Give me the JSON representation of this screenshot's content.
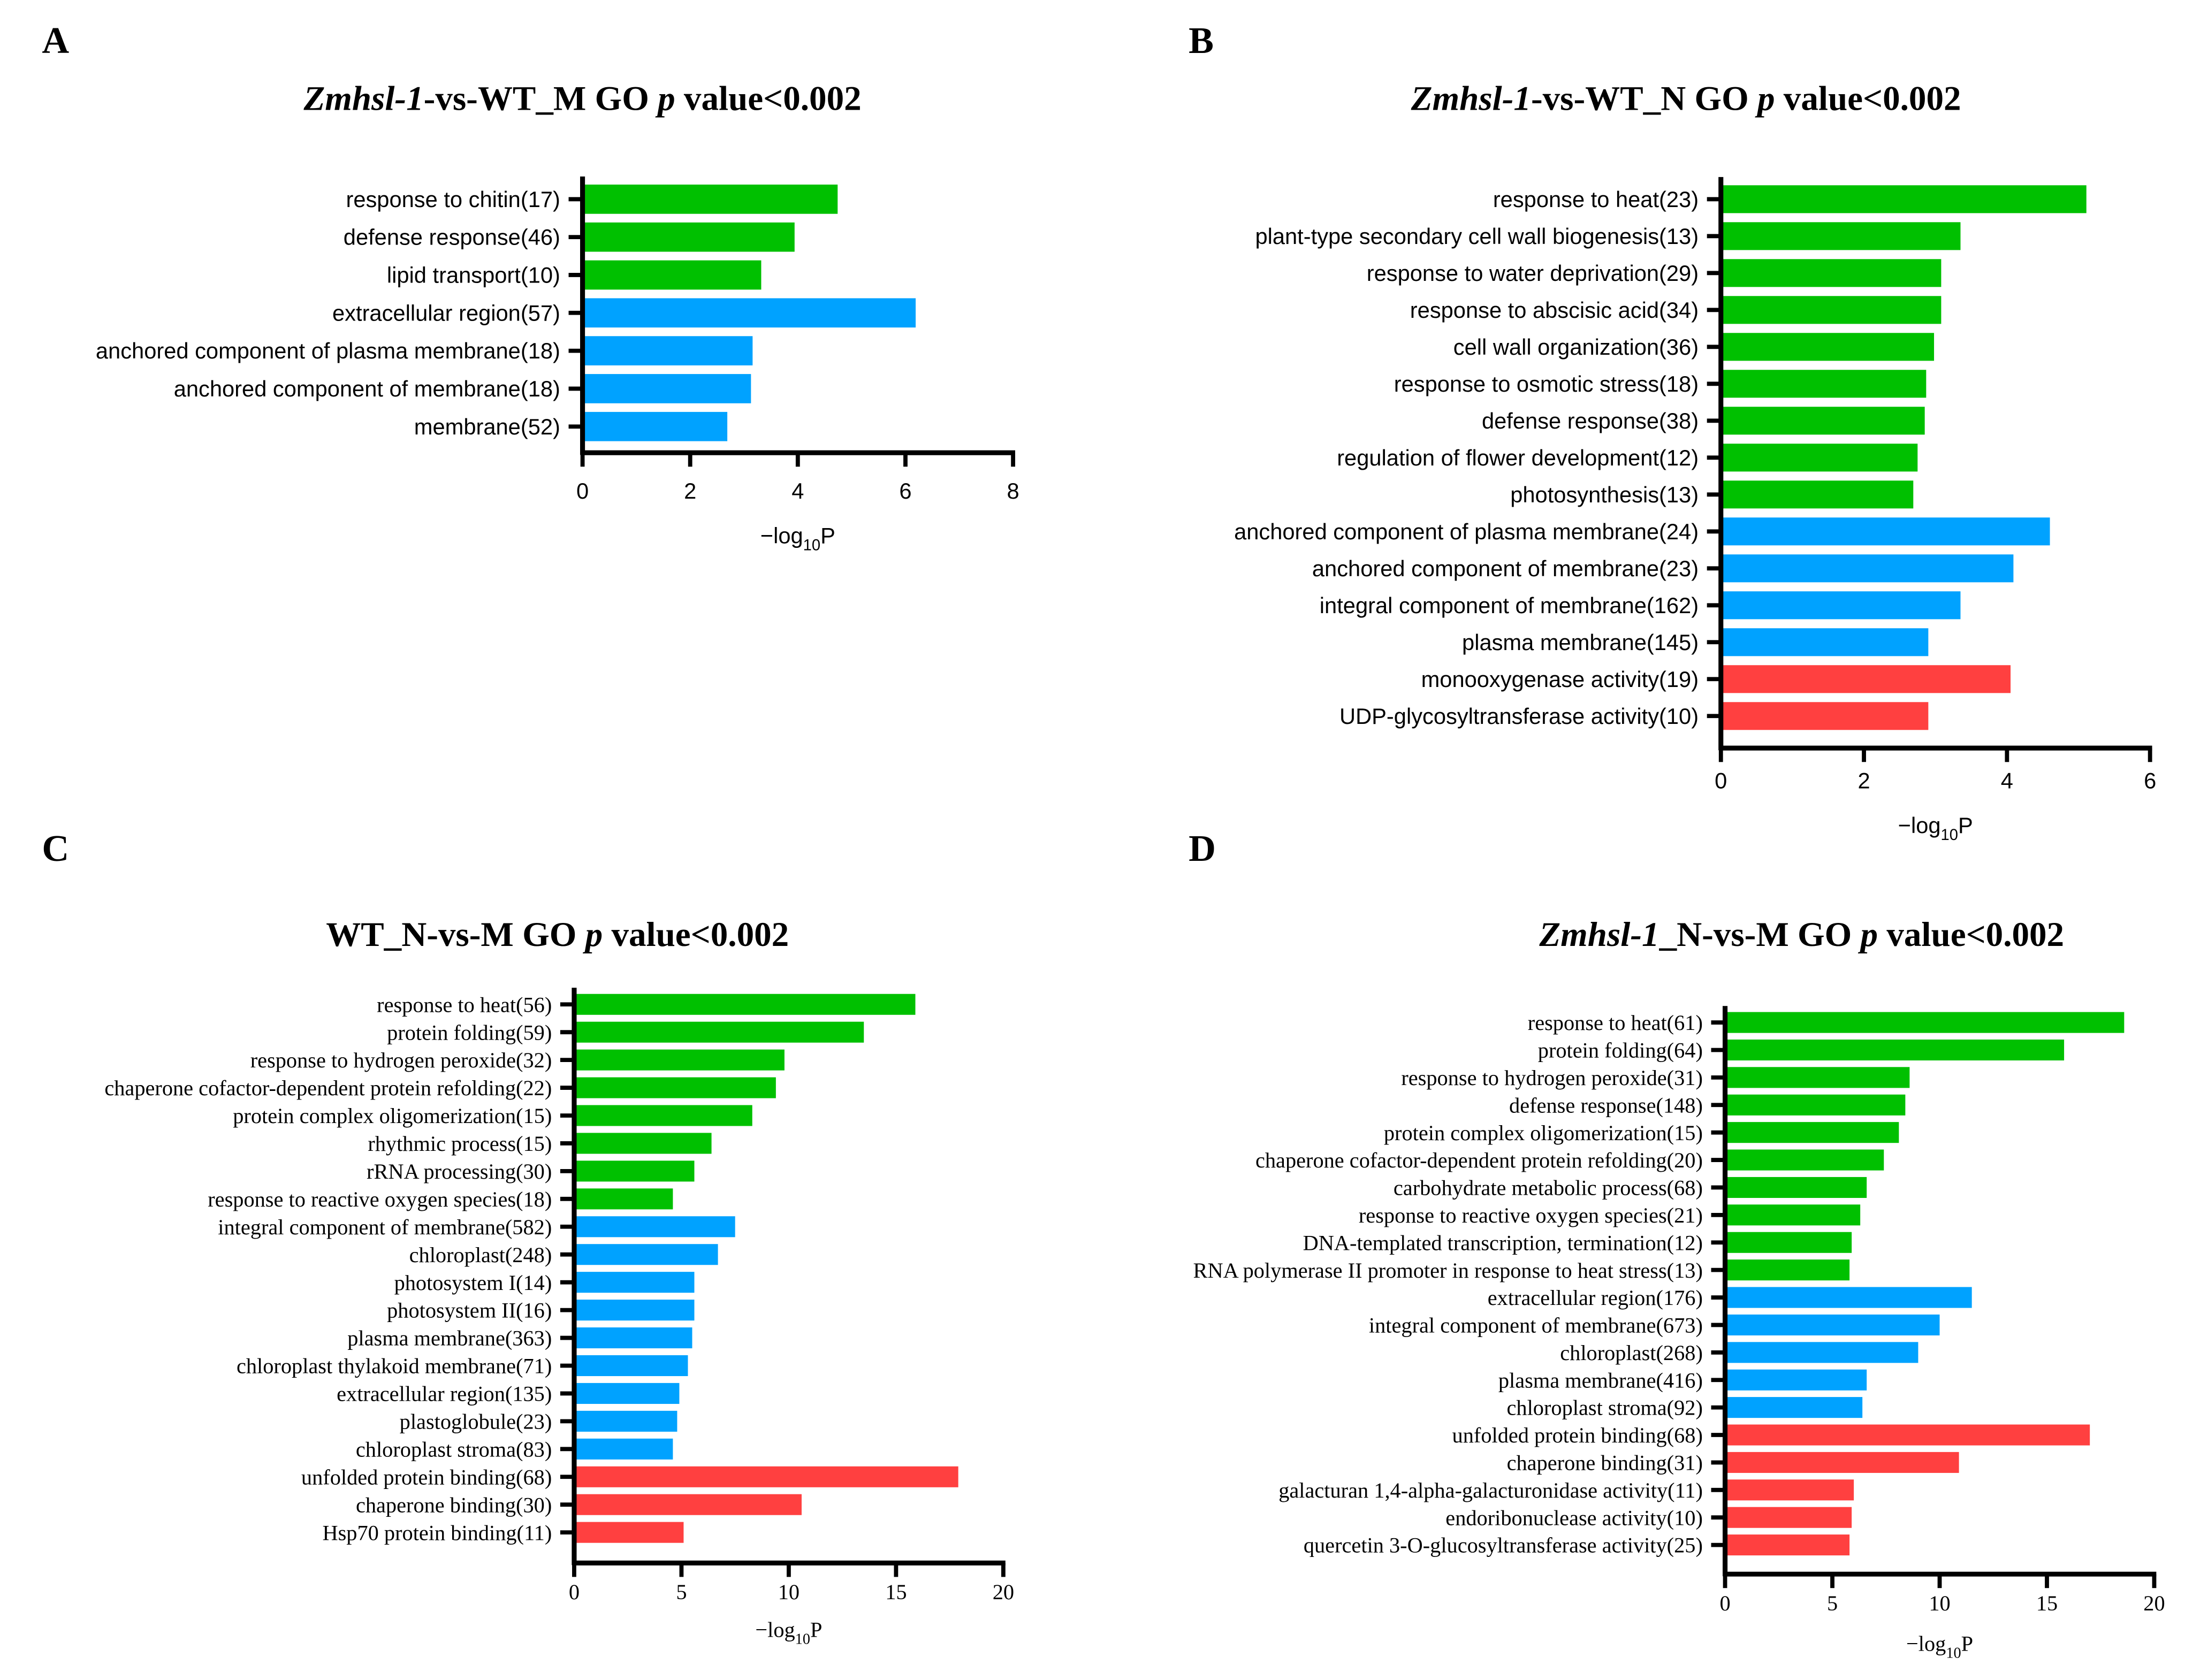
{
  "colors": {
    "bp": "#00c000",
    "cc": "#00a2ff",
    "mf": "#ff4040"
  },
  "chart_data": [
    {
      "type": "bar",
      "orientation": "horizontal",
      "panel_label": "A",
      "title": [
        {
          "text": "Zmhsl-1",
          "italic": true
        },
        {
          "text": "-vs-WT_M GO ",
          "italic": false
        },
        {
          "text": "p",
          "italic": true
        },
        {
          "text": " value<0.002",
          "italic": false
        }
      ],
      "xlabel": {
        "main": "−log",
        "sub": "10",
        "tail": "P"
      },
      "xlim": [
        0,
        8
      ],
      "xticks": [
        "0",
        "2",
        "4",
        "6",
        "8"
      ],
      "categories": [
        "response to chitin(17)",
        "defense response(46)",
        "lipid transport(10)",
        "extracellular region(57)",
        "anchored component of plasma membrane(18)",
        "anchored component of membrane(18)",
        "membrane(52)"
      ],
      "values": [
        4.74,
        3.94,
        3.32,
        6.19,
        3.16,
        3.13,
        2.69
      ],
      "groups": [
        "bp",
        "bp",
        "bp",
        "cc",
        "cc",
        "cc",
        "cc"
      ]
    },
    {
      "type": "bar",
      "orientation": "horizontal",
      "panel_label": "B",
      "title": [
        {
          "text": "Zmhsl-1",
          "italic": true
        },
        {
          "text": "-vs-WT_N GO ",
          "italic": false
        },
        {
          "text": "p",
          "italic": true
        },
        {
          "text": " value<0.002",
          "italic": false
        }
      ],
      "xlabel": {
        "main": "−log",
        "sub": "10",
        "tail": "P"
      },
      "xlim": [
        0,
        6
      ],
      "xticks": [
        "0",
        "2",
        "4",
        "6"
      ],
      "categories": [
        "response to heat(23)",
        "plant-type secondary cell wall biogenesis(13)",
        "response to water deprivation(29)",
        "response to abscisic acid(34)",
        "cell wall organization(36)",
        "response to osmotic stress(18)",
        "defense response(38)",
        "regulation of flower development(12)",
        "photosynthesis(13)",
        "anchored component of plasma membrane(24)",
        "anchored component of membrane(23)",
        "integral component of membrane(162)",
        "plasma membrane(145)",
        "monooxygenase activity(19)",
        "UDP-glycosyltransferase activity(10)"
      ],
      "values": [
        5.11,
        3.35,
        3.08,
        3.08,
        2.98,
        2.87,
        2.85,
        2.75,
        2.69,
        4.6,
        4.09,
        3.35,
        2.9,
        4.05,
        2.9
      ],
      "groups": [
        "bp",
        "bp",
        "bp",
        "bp",
        "bp",
        "bp",
        "bp",
        "bp",
        "bp",
        "cc",
        "cc",
        "cc",
        "cc",
        "mf",
        "mf"
      ]
    },
    {
      "type": "bar",
      "orientation": "horizontal",
      "panel_label": "C",
      "title": [
        {
          "text": "WT_N-vs-M GO ",
          "italic": false
        },
        {
          "text": "p",
          "italic": true
        },
        {
          "text": " value<0.002",
          "italic": false
        }
      ],
      "xlabel": {
        "main": "−log",
        "sub": "10",
        "tail": "P"
      },
      "xlim": [
        0,
        20
      ],
      "xticks": [
        "0",
        "5",
        "10",
        "15",
        "20"
      ],
      "categories": [
        "response to heat(56)",
        "protein folding(59)",
        "response to hydrogen peroxide(32)",
        "chaperone cofactor-dependent protein refolding(22)",
        "protein complex oligomerization(15)",
        "rhythmic process(15)",
        "rRNA processing(30)",
        "response to reactive oxygen species(18)",
        "integral component of membrane(582)",
        "chloroplast(248)",
        "photosystem I(14)",
        "photosystem II(16)",
        "plasma membrane(363)",
        "chloroplast thylakoid membrane(71)",
        "extracellular region(135)",
        "plastoglobule(23)",
        "chloroplast stroma(83)",
        "unfolded protein binding(68)",
        "chaperone binding(30)",
        "Hsp70 protein binding(11)"
      ],
      "values": [
        15.9,
        13.5,
        9.8,
        9.4,
        8.3,
        6.4,
        5.6,
        4.6,
        7.5,
        6.7,
        5.6,
        5.6,
        5.5,
        5.3,
        4.9,
        4.8,
        4.6,
        17.9,
        10.6,
        5.1
      ],
      "groups": [
        "bp",
        "bp",
        "bp",
        "bp",
        "bp",
        "bp",
        "bp",
        "bp",
        "cc",
        "cc",
        "cc",
        "cc",
        "cc",
        "cc",
        "cc",
        "cc",
        "cc",
        "mf",
        "mf",
        "mf"
      ]
    },
    {
      "type": "bar",
      "orientation": "horizontal",
      "panel_label": "D",
      "title": [
        {
          "text": "Zmhsl-1",
          "italic": true
        },
        {
          "text": "_N-vs-M GO ",
          "italic": false
        },
        {
          "text": "p",
          "italic": true
        },
        {
          "text": " value<0.002",
          "italic": false
        }
      ],
      "xlabel": {
        "main": "−log",
        "sub": "10",
        "tail": "P"
      },
      "xlim": [
        0,
        20
      ],
      "xticks": [
        "0",
        "5",
        "10",
        "15",
        "20"
      ],
      "categories": [
        "response to heat(61)",
        "protein folding(64)",
        "response to hydrogen peroxide(31)",
        "defense response(148)",
        "protein complex oligomerization(15)",
        "chaperone cofactor-dependent protein refolding(20)",
        "carbohydrate metabolic process(68)",
        "response to reactive oxygen species(21)",
        "DNA-templated transcription, termination(12)",
        "RNA polymerase II promoter in response to heat stress(13)",
        "extracellular region(176)",
        "integral component of membrane(673)",
        "chloroplast(268)",
        "plasma membrane(416)",
        "chloroplast stroma(92)",
        "unfolded protein binding(68)",
        "chaperone binding(31)",
        "galacturan 1,4-alpha-galacturonidase activity(11)",
        "endoribonuclease activity(10)",
        "quercetin 3-O-glucosyltransferase activity(25)"
      ],
      "values": [
        18.6,
        15.8,
        8.6,
        8.4,
        8.1,
        7.4,
        6.6,
        6.3,
        5.9,
        5.8,
        11.5,
        10.0,
        9.0,
        6.6,
        6.4,
        17.0,
        10.9,
        6.0,
        5.9,
        5.8
      ],
      "groups": [
        "bp",
        "bp",
        "bp",
        "bp",
        "bp",
        "bp",
        "bp",
        "bp",
        "bp",
        "bp",
        "cc",
        "cc",
        "cc",
        "cc",
        "cc",
        "mf",
        "mf",
        "mf",
        "mf",
        "mf"
      ]
    }
  ]
}
